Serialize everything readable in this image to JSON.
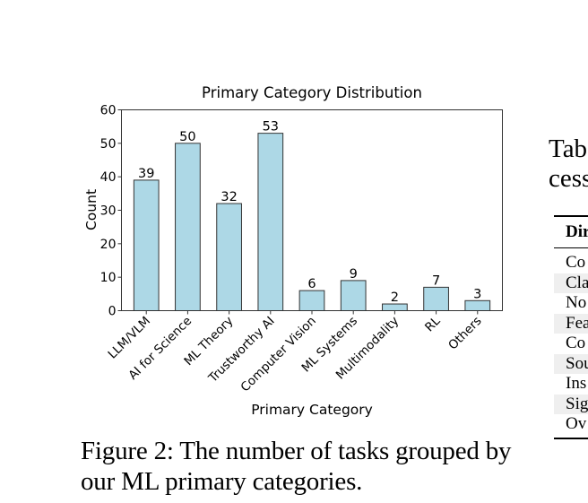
{
  "figure": {
    "caption": "Figure 2: The number of tasks grouped by our ML primary categories."
  },
  "table_fragment": {
    "caption_lines": [
      "Tab",
      "cess"
    ],
    "header": "Dir",
    "rows": [
      "Co",
      "Cla",
      "No",
      "Fea",
      "Co",
      "Sou",
      "Ins",
      "Sig",
      "Ov"
    ]
  },
  "chart_data": {
    "type": "bar",
    "title": "Primary Category Distribution",
    "xlabel": "Primary Category",
    "ylabel": "Count",
    "categories": [
      "LLM/VLM",
      "AI for Science",
      "ML Theory",
      "Trustworthy AI",
      "Computer Vision",
      "ML Systems",
      "Multimodality",
      "RL",
      "Others"
    ],
    "values": [
      39,
      50,
      32,
      53,
      6,
      9,
      2,
      7,
      3
    ],
    "ylim": [
      0,
      60
    ],
    "yticks": [
      0,
      10,
      20,
      30,
      40,
      50,
      60
    ],
    "grid": false,
    "legend": "none",
    "bar_color": "#add8e6",
    "edge_color": "#333333"
  }
}
